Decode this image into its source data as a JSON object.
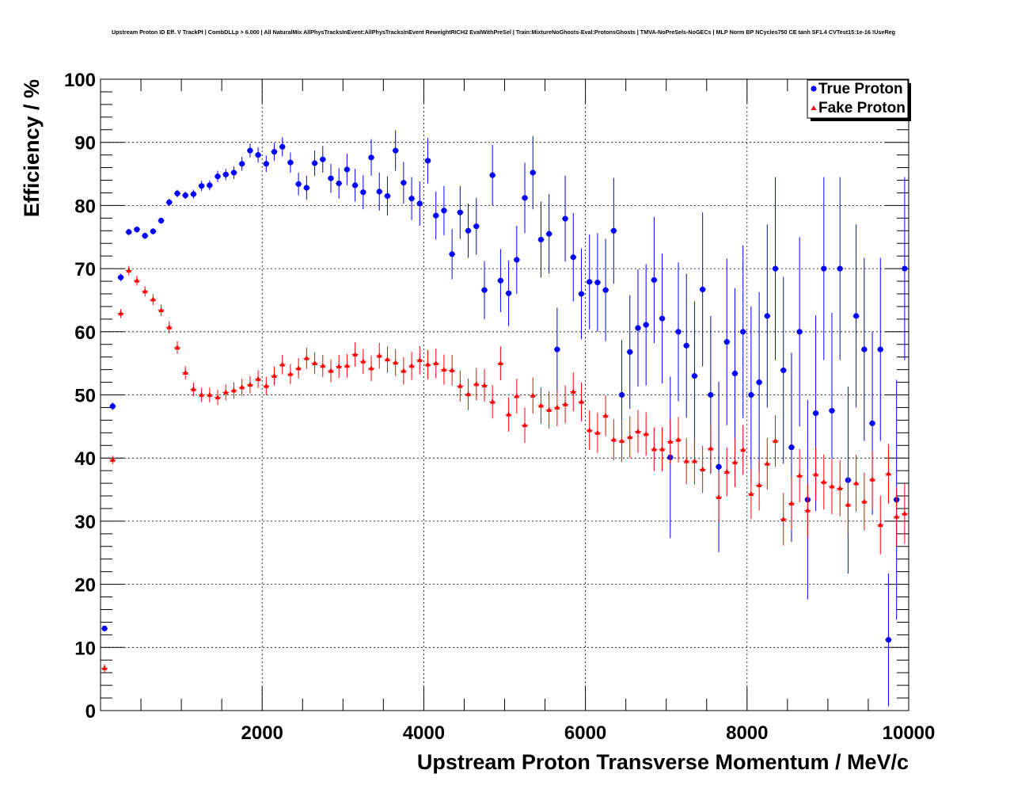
{
  "chart_data": {
    "type": "scatter",
    "title": "Upstream Proton ID Eff. V TrackPt | CombDLLp > 6.000 | All NaturalMix AllPhysTracksInEvent:AllPhysTracksInEvent ReweightRICH2 EvalWithPreSel | Train:MixtureNoGhosts-Eval:ProtonsGhosts | TMVA-NoPreSels-NoGECs | MLP Norm BP NCycles750 CE tanh SF1.4 CVTest15:1e-16 !UseReg",
    "xlabel": "Upstream Proton Transverse Momentum / MeV/c",
    "ylabel": "Efficiency / %",
    "xlim": [
      0,
      10000
    ],
    "ylim": [
      0,
      100
    ],
    "xticks": [
      "2000",
      "4000",
      "6000",
      "8000",
      "10000"
    ],
    "yticks": [
      "0",
      "10",
      "20",
      "30",
      "40",
      "50",
      "60",
      "70",
      "80",
      "90",
      "100"
    ],
    "grid": true,
    "legend_position": "top-right",
    "series": [
      {
        "name": "True Proton",
        "marker": "circle",
        "color": "#0000ff",
        "x": [
          50,
          150,
          250,
          350,
          450,
          550,
          650,
          750,
          850,
          950,
          1050,
          1150,
          1250,
          1350,
          1450,
          1550,
          1650,
          1750,
          1850,
          1950,
          2050,
          2150,
          2250,
          2350,
          2450,
          2550,
          2650,
          2750,
          2850,
          2950,
          3050,
          3150,
          3250,
          3350,
          3450,
          3550,
          3650,
          3750,
          3850,
          3950,
          4050,
          4150,
          4250,
          4350,
          4450,
          4550,
          4650,
          4750,
          4850,
          4950,
          5050,
          5150,
          5250,
          5350,
          5450,
          5550,
          5650,
          5750,
          5850,
          5950,
          6050,
          6150,
          6250,
          6350,
          6450,
          6550,
          6650,
          6750,
          6850,
          6950,
          7050,
          7150,
          7250,
          7350,
          7450,
          7550,
          7650,
          7750,
          7850,
          7950,
          8050,
          8150,
          8250,
          8350,
          8450,
          8550,
          8650,
          8750,
          8850,
          8950,
          9050,
          9150,
          9250,
          9350,
          9450,
          9550,
          9650,
          9750,
          9850,
          9950
        ],
        "y": [
          13.0,
          48.2,
          68.6,
          75.8,
          76.2,
          75.2,
          75.9,
          77.6,
          80.5,
          81.9,
          81.6,
          81.8,
          83.1,
          83.2,
          84.6,
          84.9,
          85.2,
          86.6,
          88.7,
          88.0,
          86.6,
          88.5,
          89.3,
          86.8,
          83.4,
          82.8,
          86.7,
          87.3,
          84.3,
          83.5,
          85.7,
          83.2,
          82.1,
          87.6,
          82.2,
          81.5,
          88.7,
          83.6,
          81.1,
          80.3,
          87.1,
          78.4,
          79.2,
          72.3,
          78.9,
          76.0,
          76.7,
          66.6,
          84.8,
          68.1,
          66.1,
          71.4,
          81.2,
          85.2,
          74.6,
          75.5,
          57.2,
          77.9,
          71.8,
          66.0,
          67.9,
          67.8,
          66.6,
          76.0,
          50.0,
          56.8,
          60.6,
          61.1,
          68.2,
          62.1,
          40.1,
          60.0,
          57.8,
          53.0,
          66.7,
          50.0,
          38.6,
          58.4,
          53.4,
          60.0,
          50.0,
          52.0,
          62.5,
          70.0,
          53.9,
          41.7,
          60.0,
          33.4,
          47.1,
          70.0,
          47.5,
          70.0,
          36.5,
          62.5,
          57.2,
          45.5,
          57.2,
          11.2,
          33.4,
          70.0
        ],
        "yerr": [
          0.4,
          0.6,
          0.6,
          0.5,
          0.5,
          0.5,
          0.5,
          0.5,
          0.6,
          0.6,
          0.6,
          0.7,
          0.8,
          0.8,
          0.9,
          0.9,
          1.0,
          1.1,
          1.1,
          1.2,
          1.3,
          1.4,
          1.5,
          1.6,
          1.8,
          1.9,
          2.0,
          2.1,
          2.3,
          2.4,
          2.5,
          2.6,
          2.7,
          2.9,
          3.0,
          3.1,
          3.2,
          3.3,
          3.4,
          3.5,
          3.6,
          3.8,
          3.9,
          4.0,
          4.2,
          4.3,
          4.5,
          4.6,
          4.8,
          5.0,
          5.2,
          5.4,
          5.6,
          5.8,
          6.0,
          6.3,
          6.6,
          6.8,
          7.0,
          7.2,
          7.5,
          7.8,
          8.1,
          8.4,
          8.7,
          9.0,
          9.3,
          9.6,
          10.0,
          10.3,
          12.8,
          11.0,
          11.4,
          11.8,
          12.2,
          12.5,
          13.5,
          13.2,
          13.5,
          13.7,
          14.0,
          14.3,
          14.5,
          14.5,
          14.8,
          15.0,
          15.0,
          15.8,
          15.5,
          14.5,
          15.5,
          14.5,
          14.8,
          14.5,
          14.5,
          14.5,
          14.5,
          10.5,
          19.0,
          14.5
        ]
      },
      {
        "name": "Fake Proton",
        "marker": "triangle",
        "color": "#ff0000",
        "x": [
          50,
          150,
          250,
          350,
          450,
          550,
          650,
          750,
          850,
          950,
          1050,
          1150,
          1250,
          1350,
          1450,
          1550,
          1650,
          1750,
          1850,
          1950,
          2050,
          2150,
          2250,
          2350,
          2450,
          2550,
          2650,
          2750,
          2850,
          2950,
          3050,
          3150,
          3250,
          3350,
          3450,
          3550,
          3650,
          3750,
          3850,
          3950,
          4050,
          4150,
          4250,
          4350,
          4450,
          4550,
          4650,
          4750,
          4850,
          4950,
          5050,
          5150,
          5250,
          5350,
          5450,
          5550,
          5650,
          5750,
          5850,
          5950,
          6050,
          6150,
          6250,
          6350,
          6450,
          6550,
          6650,
          6750,
          6850,
          6950,
          7050,
          7150,
          7250,
          7350,
          7450,
          7550,
          7650,
          7750,
          7850,
          7950,
          8050,
          8150,
          8250,
          8350,
          8450,
          8550,
          8650,
          8750,
          8850,
          8950,
          9050,
          9150,
          9250,
          9350,
          9450,
          9550,
          9650,
          9750,
          9850,
          9950
        ],
        "y": [
          6.7,
          39.7,
          62.9,
          69.7,
          68.1,
          66.4,
          65.1,
          63.4,
          60.7,
          57.5,
          53.5,
          50.9,
          50.0,
          50.0,
          49.6,
          50.4,
          50.7,
          51.2,
          51.6,
          52.5,
          51.4,
          53.0,
          54.8,
          53.3,
          54.2,
          55.8,
          55.0,
          54.6,
          53.8,
          54.5,
          54.6,
          56.4,
          55.3,
          54.2,
          56.2,
          55.6,
          55.1,
          53.8,
          54.6,
          55.5,
          54.8,
          55.0,
          54.0,
          53.9,
          51.4,
          50.1,
          51.7,
          51.5,
          48.9,
          55.0,
          46.9,
          49.8,
          45.2,
          49.9,
          48.3,
          47.6,
          48.0,
          48.5,
          50.5,
          48.9,
          44.4,
          44.0,
          46.7,
          42.9,
          42.7,
          43.3,
          44.2,
          43.8,
          41.4,
          41.4,
          42.6,
          42.9,
          39.5,
          39.5,
          38.2,
          41.5,
          33.8,
          37.8,
          39.3,
          41.3,
          34.3,
          35.7,
          39.1,
          42.7,
          30.3,
          32.8,
          37.2,
          31.7,
          37.4,
          36.2,
          35.5,
          35.2,
          32.6,
          36.0,
          33.1,
          36.6,
          29.4,
          37.5,
          30.7,
          31.2
        ]
      }
    ]
  }
}
